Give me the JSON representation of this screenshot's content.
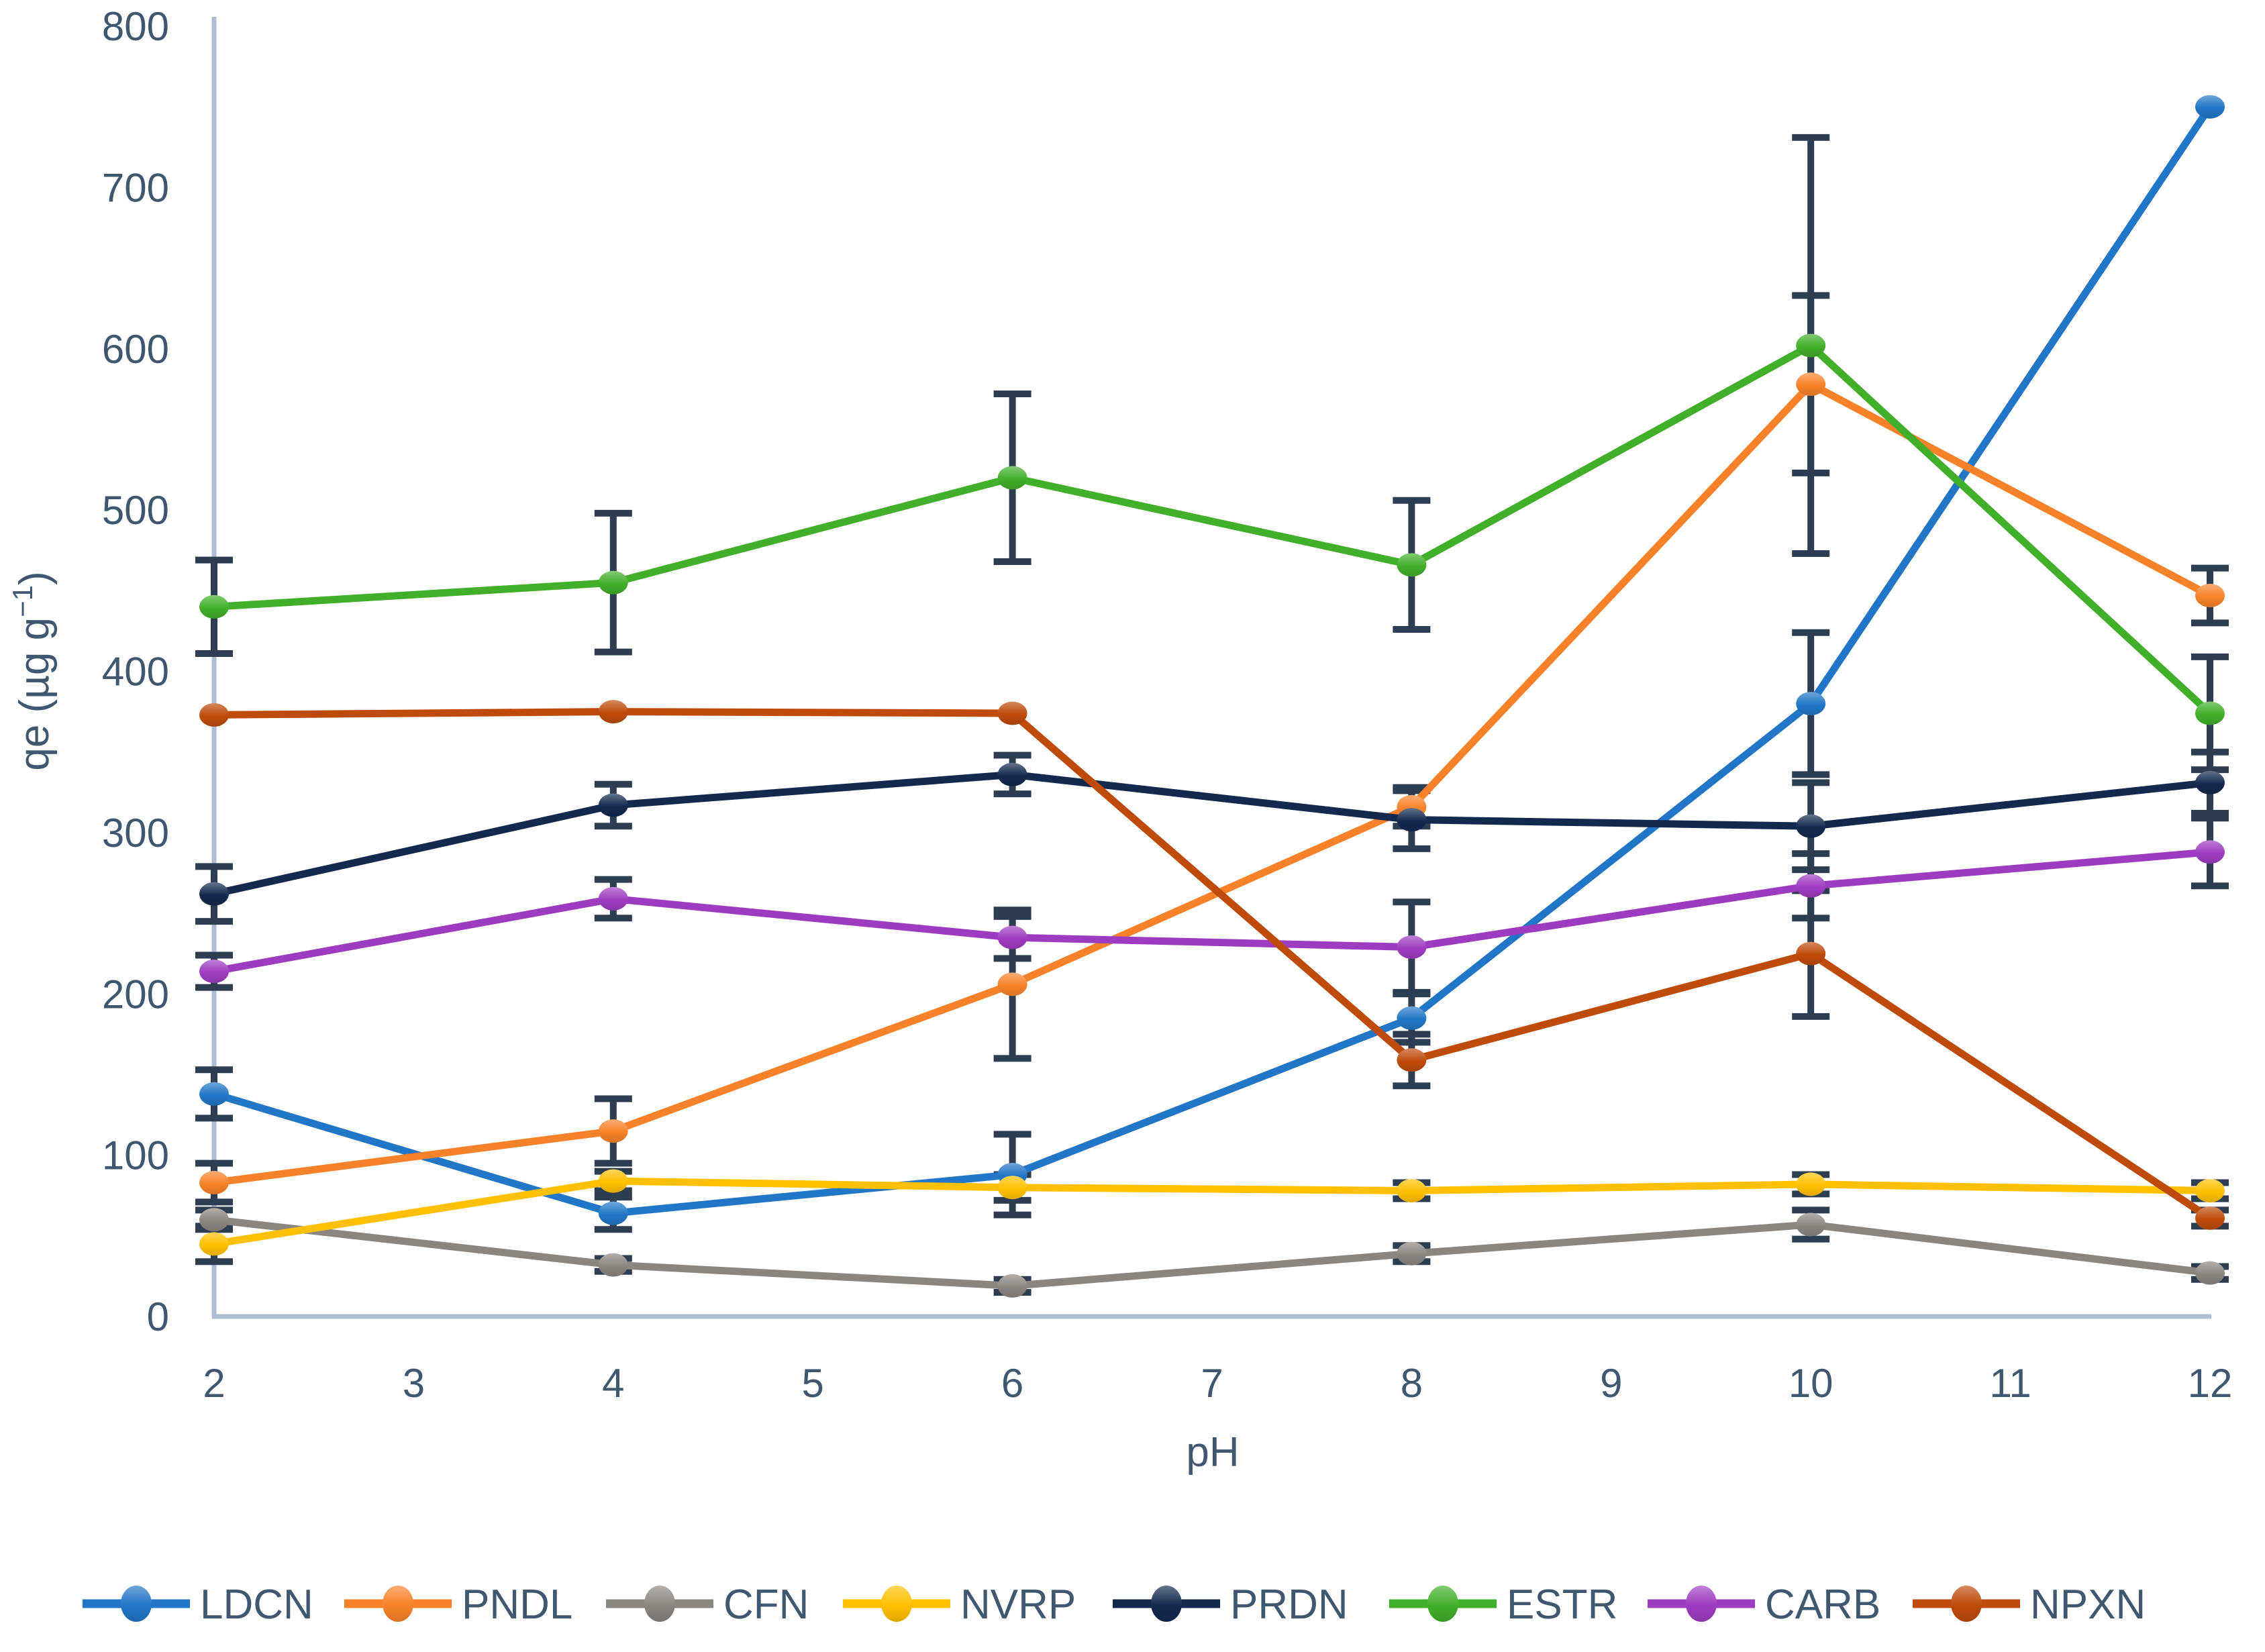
{
  "figure": {
    "background": "#ffffff"
  },
  "chart_data": {
    "type": "line",
    "title": "",
    "xlabel": "pH",
    "ylabel_parts": [
      "qe (µg g",
      "−1",
      ")"
    ],
    "x": [
      2,
      4,
      6,
      8,
      10,
      12
    ],
    "xticks": [
      2,
      3,
      4,
      5,
      6,
      7,
      8,
      9,
      10,
      11,
      12
    ],
    "yticks": [
      0,
      100,
      200,
      300,
      400,
      500,
      600,
      700,
      800
    ],
    "ylim": [
      0,
      800
    ],
    "xlim": [
      2,
      12
    ],
    "grid": false,
    "legend_position": "bottom",
    "marker": "ellipse",
    "error_bars": true,
    "series": [
      {
        "name": "LDCN",
        "color": "#2176C7",
        "values": [
          138,
          64,
          88,
          185,
          380,
          750
        ],
        "errors": [
          15,
          10,
          25,
          15,
          44,
          0
        ]
      },
      {
        "name": "PNDL",
        "color": "#F8822A",
        "values": [
          83,
          115,
          206,
          316,
          578,
          447
        ],
        "errors": [
          12,
          20,
          46,
          12,
          55,
          17
        ]
      },
      {
        "name": "CFN",
        "color": "#8B8580",
        "values": [
          60,
          32,
          19,
          39,
          57,
          27
        ],
        "errors": [
          6,
          4,
          4,
          5,
          9,
          4
        ]
      },
      {
        "name": "NVRP",
        "color": "#FFC001",
        "values": [
          45,
          84,
          80,
          78,
          82,
          78
        ],
        "errors": [
          11,
          6,
          8,
          5,
          6,
          5
        ]
      },
      {
        "name": "PRDN",
        "color": "#13294E",
        "values": [
          262,
          317,
          336,
          308,
          304,
          331
        ],
        "errors": [
          17,
          13,
          12,
          18,
          27,
          19
        ]
      },
      {
        "name": "ESTR",
        "color": "#41AF2A",
        "values": [
          440,
          455,
          520,
          466,
          602,
          374
        ],
        "errors": [
          29,
          43,
          52,
          40,
          129,
          35
        ]
      },
      {
        "name": "CARB",
        "color": "#9E3CC1",
        "values": [
          214,
          259,
          235,
          229,
          267,
          288
        ],
        "errors": [
          10,
          12,
          13,
          28,
          20,
          21
        ]
      },
      {
        "name": "NPXN",
        "color": "#BE4B0A",
        "values": [
          373,
          375,
          374,
          159,
          225,
          61
        ],
        "errors": [
          0,
          0,
          0,
          16,
          39,
          5
        ]
      }
    ]
  },
  "colors": {
    "axis_line": "#AEBDD2",
    "error_bar": "#2E3E52",
    "text": "#3F5870",
    "background": "#FFFFFF"
  }
}
